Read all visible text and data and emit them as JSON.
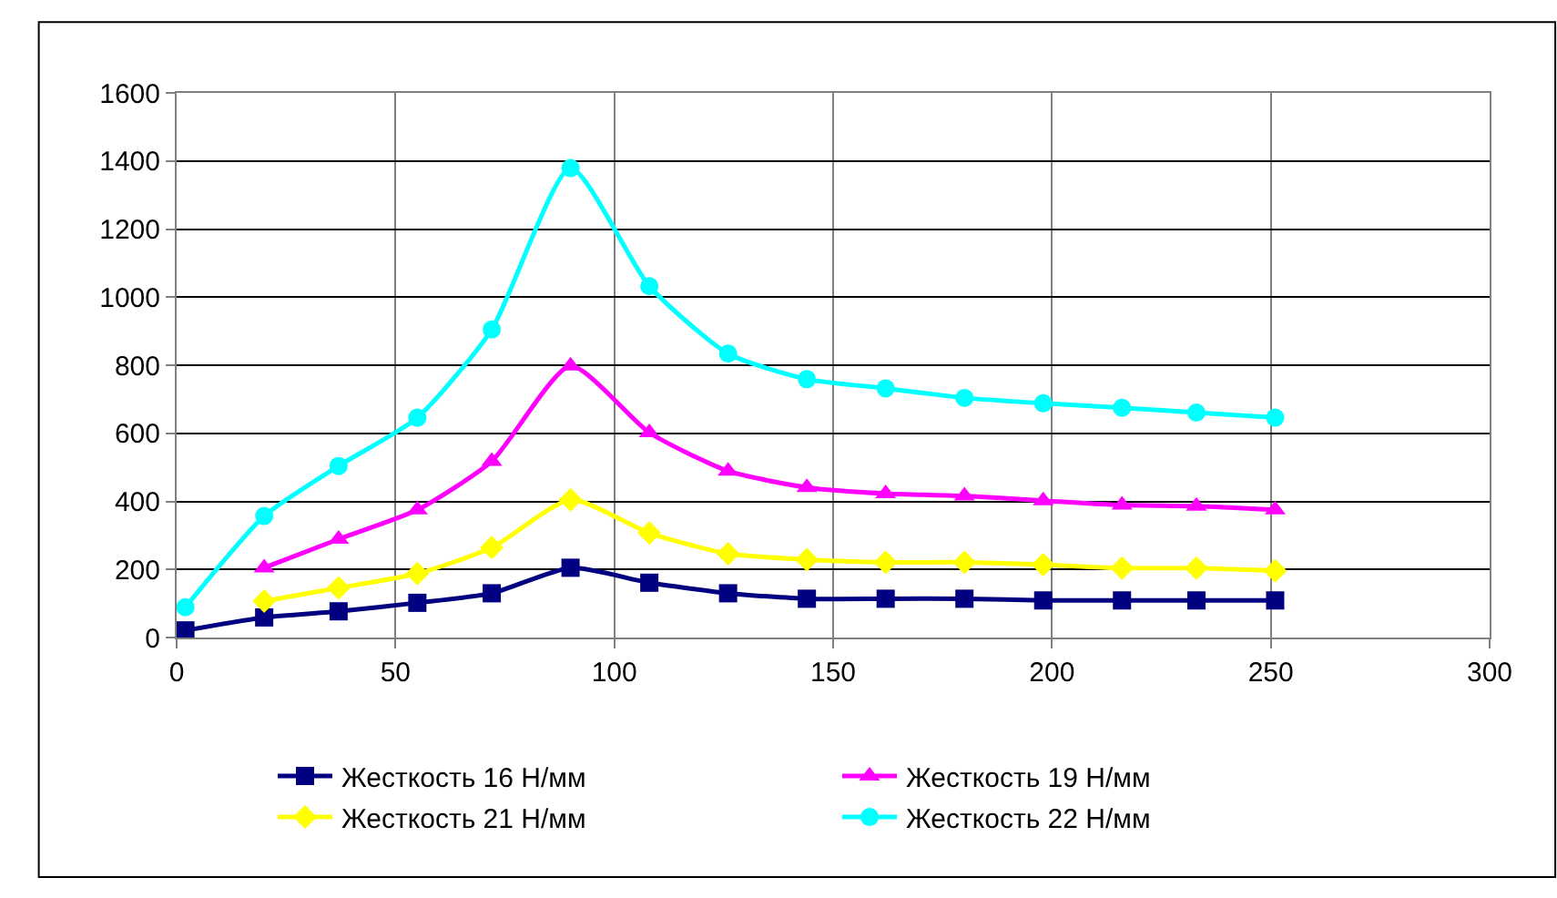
{
  "chart_data": {
    "type": "line",
    "x": [
      2,
      20,
      37,
      55,
      72,
      90,
      108,
      126,
      144,
      162,
      180,
      198,
      216,
      233,
      251
    ],
    "series": [
      {
        "name": "Жесткость 16 Н/мм",
        "color": "#000080",
        "marker": "square",
        "values": [
          21,
          59,
          77,
          102,
          130,
          205,
          161,
          130,
          114,
          114,
          114,
          109,
          109,
          109,
          109
        ]
      },
      {
        "name": "Жесткость 19 Н/мм",
        "color": "#ff00ff",
        "marker": "triangle",
        "values": [
          null,
          205,
          289,
          375,
          518,
          798,
          602,
          489,
          441,
          423,
          416,
          402,
          389,
          386,
          375
        ]
      },
      {
        "name": "Жесткость 21 Н/мм",
        "color": "#ffff00",
        "marker": "diamond",
        "values": [
          null,
          107,
          146,
          188,
          264,
          405,
          307,
          246,
          229,
          221,
          221,
          214,
          204,
          204,
          196
        ]
      },
      {
        "name": "Жесткость 22 Н/мм",
        "color": "#00ffff",
        "marker": "circle",
        "values": [
          89,
          357,
          504,
          646,
          905,
          1379,
          1032,
          834,
          759,
          732,
          704,
          688,
          675,
          661,
          646
        ]
      }
    ],
    "xlim": [
      0,
      300
    ],
    "xticks": [
      0,
      50,
      100,
      150,
      200,
      250,
      300
    ],
    "ylim": [
      0,
      1600
    ],
    "yticks": [
      0,
      200,
      400,
      600,
      800,
      1000,
      1200,
      1400,
      1600
    ],
    "grid": true,
    "legend": "bottom",
    "line_style": "solid"
  }
}
